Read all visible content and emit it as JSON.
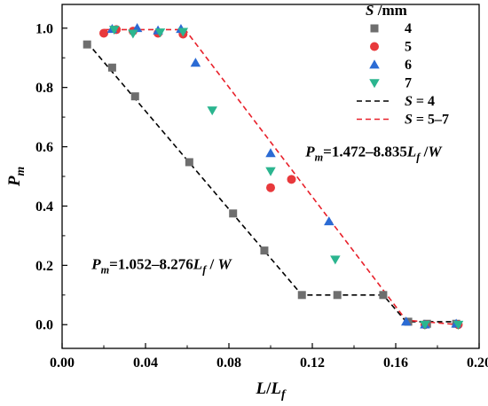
{
  "chart_data": {
    "type": "scatter",
    "xlabel": "L/Lf",
    "ylabel": "Pm",
    "xlim": [
      0.0,
      0.2
    ],
    "ylim": [
      -0.08,
      1.08
    ],
    "x_ticks": [
      "0.00",
      "0.04",
      "0.08",
      "0.12",
      "0.16",
      "0.20"
    ],
    "y_ticks": [
      "0.0",
      "0.2",
      "0.4",
      "0.6",
      "0.8",
      "1.0"
    ],
    "grid": false,
    "legend_title": "S /mm",
    "legend_position": "top-right",
    "series": [
      {
        "name": "4",
        "marker": "square",
        "color": "#6e6e6e",
        "points": [
          [
            0.012,
            0.945
          ],
          [
            0.024,
            0.867
          ],
          [
            0.035,
            0.77
          ],
          [
            0.061,
            0.548
          ],
          [
            0.082,
            0.375
          ],
          [
            0.097,
            0.25
          ],
          [
            0.115,
            0.1
          ],
          [
            0.132,
            0.1
          ],
          [
            0.154,
            0.1
          ],
          [
            0.166,
            0.01
          ],
          [
            0.175,
            0.003
          ],
          [
            0.189,
            0.003
          ]
        ]
      },
      {
        "name": "5",
        "marker": "circle",
        "color": "#e8393c",
        "points": [
          [
            0.02,
            0.983
          ],
          [
            0.026,
            0.995
          ],
          [
            0.034,
            0.99
          ],
          [
            0.046,
            0.983
          ],
          [
            0.058,
            0.98
          ],
          [
            0.1,
            0.462
          ],
          [
            0.11,
            0.49
          ],
          [
            0.174,
            0.0
          ],
          [
            0.19,
            0.0
          ]
        ]
      },
      {
        "name": "6",
        "marker": "triangle-up",
        "color": "#2b6bd4",
        "points": [
          [
            0.024,
            0.997
          ],
          [
            0.036,
            1.0
          ],
          [
            0.046,
            0.992
          ],
          [
            0.057,
            0.997
          ],
          [
            0.064,
            0.883
          ],
          [
            0.1,
            0.578
          ],
          [
            0.128,
            0.348
          ],
          [
            0.165,
            0.01
          ],
          [
            0.174,
            0.0
          ],
          [
            0.189,
            0.003
          ]
        ]
      },
      {
        "name": "7",
        "marker": "triangle-down",
        "color": "#2bb58f",
        "points": [
          [
            0.025,
            0.995
          ],
          [
            0.034,
            0.982
          ],
          [
            0.047,
            0.986
          ],
          [
            0.058,
            0.988
          ],
          [
            0.072,
            0.723
          ],
          [
            0.1,
            0.518
          ],
          [
            0.131,
            0.22
          ],
          [
            0.174,
            0.0
          ],
          [
            0.19,
            0.0
          ]
        ]
      },
      {
        "name": "S = 4",
        "type": "line",
        "style": "dashed",
        "color": "#000000",
        "points": [
          [
            0.012,
            0.952
          ],
          [
            0.115,
            0.1
          ],
          [
            0.154,
            0.1
          ],
          [
            0.165,
            0.01
          ],
          [
            0.19,
            0.01
          ]
        ]
      },
      {
        "name": "S = 5–7",
        "type": "line",
        "style": "dashed",
        "color": "#e8202a",
        "points": [
          [
            0.02,
            0.995
          ],
          [
            0.059,
            0.995
          ],
          [
            0.165,
            0.015
          ],
          [
            0.19,
            0.0
          ]
        ]
      }
    ],
    "annotations": [
      {
        "text_main": "Pm=1.472–8.835Lf/W",
        "parts": [
          "P",
          "m",
          "=1.472–8.835",
          "L",
          "f",
          " /",
          "W"
        ],
        "at": [
          0.115,
          0.52
        ]
      },
      {
        "text_main": "Pm=1.052–8.276Lf/W",
        "parts": [
          "P",
          "m",
          "=1.052–8.276",
          "L",
          "f",
          " / ",
          "W"
        ],
        "at": [
          0.012,
          0.25
        ]
      }
    ],
    "axis_title_parts": {
      "x": [
        "L",
        "/",
        "L",
        "f"
      ],
      "y": [
        "P",
        "m"
      ]
    },
    "legend_title_parts": [
      "S",
      " /mm"
    ],
    "legend_line_parts": {
      "S = 4": [
        "S",
        " = 4"
      ],
      "S = 5–7": [
        "S",
        " = 5–7"
      ]
    }
  }
}
